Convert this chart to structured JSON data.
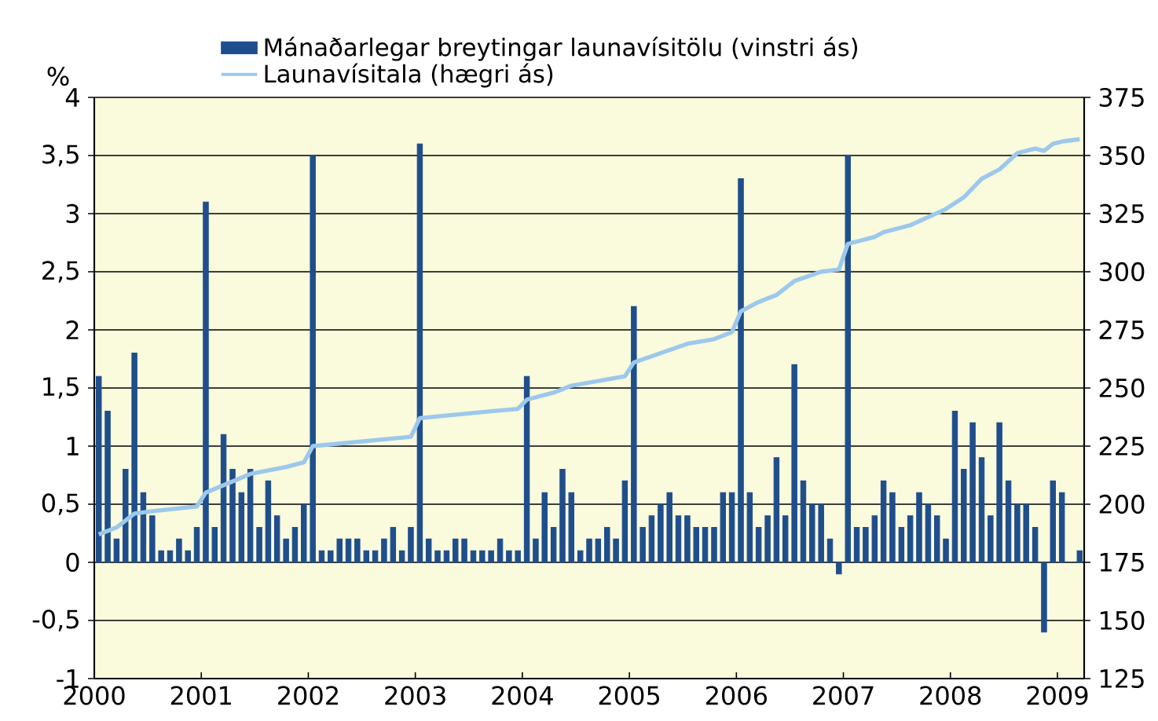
{
  "chart_data": {
    "type": "bar",
    "ylabel": "%",
    "legend": "top",
    "grid": "y",
    "xlim": [
      2000,
      2009.25
    ],
    "xticks": [
      2000,
      2001,
      2002,
      2003,
      2004,
      2005,
      2006,
      2007,
      2008,
      2009
    ],
    "ylim": [
      -1,
      4
    ],
    "yticks": [
      {
        "value": -1,
        "label": "-1"
      },
      {
        "value": -0.5,
        "label": "-0,5"
      },
      {
        "value": 0,
        "label": "0"
      },
      {
        "value": 0.5,
        "label": "0,5"
      },
      {
        "value": 1,
        "label": "1"
      },
      {
        "value": 1.5,
        "label": "1,5"
      },
      {
        "value": 2,
        "label": "2"
      },
      {
        "value": 2.5,
        "label": "2,5"
      },
      {
        "value": 3,
        "label": "3"
      },
      {
        "value": 3.5,
        "label": "3,5"
      },
      {
        "value": 4,
        "label": "4"
      }
    ],
    "y2lim": [
      125,
      375
    ],
    "y2ticks": [
      125,
      150,
      175,
      200,
      225,
      250,
      275,
      300,
      325,
      350,
      375
    ],
    "series": [
      {
        "name": "Mánaðarlegar breytingar launavísitölu (vinstri ás)",
        "color": "#1f4e8c",
        "x": [
          2000.042,
          2000.125,
          2000.208,
          2000.292,
          2000.375,
          2000.458,
          2000.542,
          2000.625,
          2000.708,
          2000.792,
          2000.875,
          2000.958,
          2001.042,
          2001.125,
          2001.208,
          2001.292,
          2001.375,
          2001.458,
          2001.542,
          2001.625,
          2001.708,
          2001.792,
          2001.875,
          2001.958,
          2002.042,
          2002.125,
          2002.208,
          2002.292,
          2002.375,
          2002.458,
          2002.542,
          2002.625,
          2002.708,
          2002.792,
          2002.875,
          2002.958,
          2003.042,
          2003.125,
          2003.208,
          2003.292,
          2003.375,
          2003.458,
          2003.542,
          2003.625,
          2003.708,
          2003.792,
          2003.875,
          2003.958,
          2004.042,
          2004.125,
          2004.208,
          2004.292,
          2004.375,
          2004.458,
          2004.542,
          2004.625,
          2004.708,
          2004.792,
          2004.875,
          2004.958,
          2005.042,
          2005.125,
          2005.208,
          2005.292,
          2005.375,
          2005.458,
          2005.542,
          2005.625,
          2005.708,
          2005.792,
          2005.875,
          2005.958,
          2006.042,
          2006.125,
          2006.208,
          2006.292,
          2006.375,
          2006.458,
          2006.542,
          2006.625,
          2006.708,
          2006.792,
          2006.875,
          2006.958,
          2007.042,
          2007.125,
          2007.208,
          2007.292,
          2007.375,
          2007.458,
          2007.542,
          2007.625,
          2007.708,
          2007.792,
          2007.875,
          2007.958,
          2008.042,
          2008.125,
          2008.208,
          2008.292,
          2008.375,
          2008.458,
          2008.542,
          2008.625,
          2008.708,
          2008.792,
          2008.875,
          2008.958,
          2009.042,
          2009.125,
          2009.208
        ],
        "values": [
          1.6,
          1.3,
          0.2,
          0.8,
          1.8,
          0.6,
          0.4,
          0.1,
          0.1,
          0.2,
          0.1,
          0.3,
          3.1,
          0.3,
          1.1,
          0.8,
          0.6,
          0.8,
          0.3,
          0.7,
          0.4,
          0.2,
          0.3,
          0.5,
          3.5,
          0.1,
          0.1,
          0.2,
          0.2,
          0.2,
          0.1,
          0.1,
          0.2,
          0.3,
          0.1,
          0.3,
          3.6,
          0.2,
          0.1,
          0.1,
          0.2,
          0.2,
          0.1,
          0.1,
          0.1,
          0.2,
          0.1,
          0.1,
          1.6,
          0.2,
          0.6,
          0.3,
          0.8,
          0.6,
          0.1,
          0.2,
          0.2,
          0.3,
          0.2,
          0.7,
          2.2,
          0.3,
          0.4,
          0.5,
          0.6,
          0.4,
          0.4,
          0.3,
          0.3,
          0.3,
          0.6,
          0.6,
          3.3,
          0.6,
          0.3,
          0.4,
          0.9,
          0.4,
          1.7,
          0.7,
          0.5,
          0.5,
          0.2,
          -0.1,
          3.5,
          0.3,
          0.3,
          0.4,
          0.7,
          0.6,
          0.3,
          0.4,
          0.6,
          0.5,
          0.4,
          0.2,
          1.3,
          0.8,
          1.2,
          0.9,
          0.4,
          1.2,
          0.7,
          0.5,
          0.5,
          0.3,
          -0.6,
          0.7,
          0.6,
          0,
          0.1
        ]
      },
      {
        "name": "Launavísitala (hægri ás)",
        "type": "line",
        "axis": "y2",
        "color": "#9cc8ec",
        "x": [
          2000.042,
          2000.208,
          2000.375,
          2000.542,
          2000.958,
          2001.042,
          2001.458,
          2001.792,
          2001.958,
          2002.042,
          2002.958,
          2003.042,
          2003.708,
          2003.958,
          2004.042,
          2004.292,
          2004.458,
          2004.958,
          2005.042,
          2005.542,
          2005.792,
          2005.958,
          2006.042,
          2006.208,
          2006.375,
          2006.542,
          2006.792,
          2006.958,
          2007.042,
          2007.292,
          2007.375,
          2007.625,
          2007.958,
          2008.125,
          2008.292,
          2008.458,
          2008.625,
          2008.792,
          2008.875,
          2008.958,
          2009.042,
          2009.208
        ],
        "values": [
          187,
          190,
          196,
          197,
          199,
          205,
          213,
          216,
          218,
          225,
          229,
          237,
          240,
          241,
          245,
          248,
          251,
          255,
          261,
          269,
          271,
          274,
          283,
          287,
          290,
          296,
          300,
          301,
          312,
          315,
          317,
          320,
          327,
          332,
          340,
          344,
          351,
          353,
          352,
          355,
          356,
          357
        ]
      }
    ]
  }
}
